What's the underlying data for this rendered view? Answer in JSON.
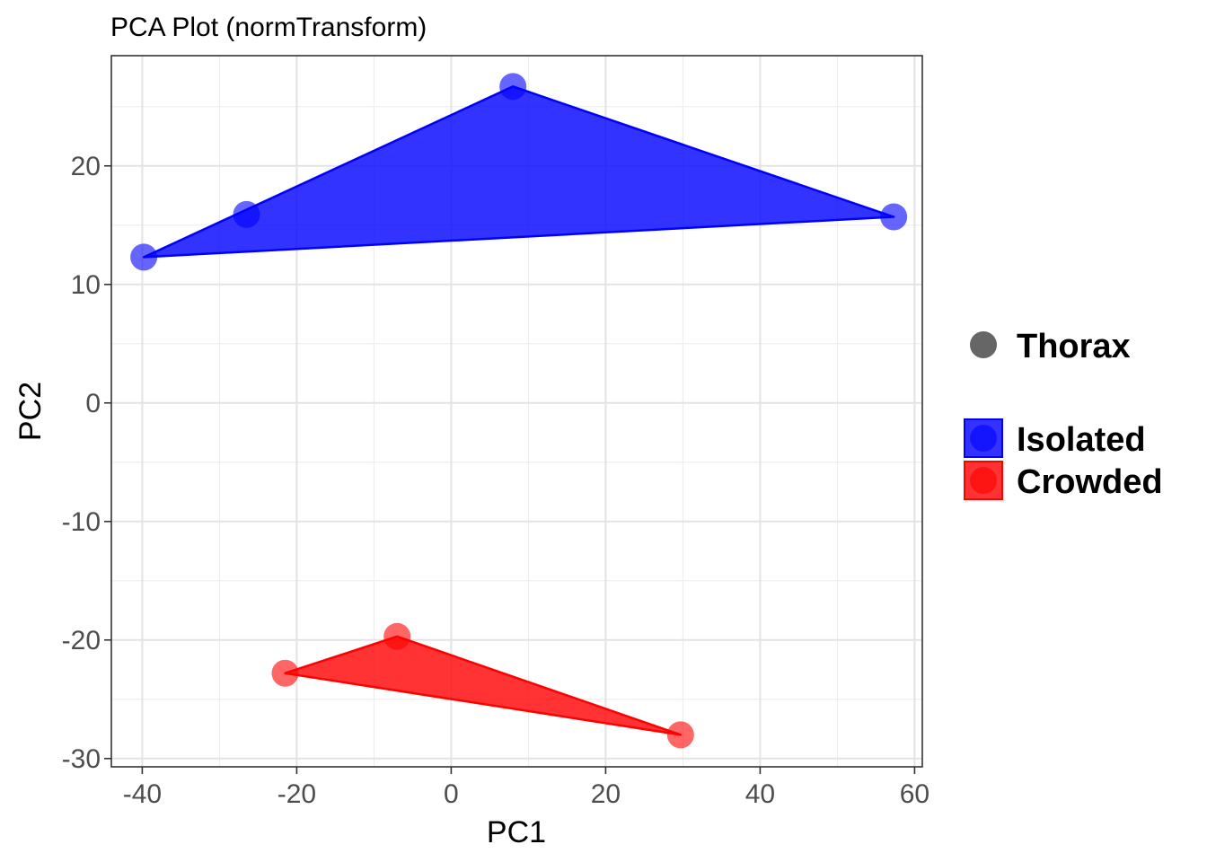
{
  "chart_data": {
    "type": "scatter",
    "title": "PCA Plot (normTransform)",
    "xlabel": "PC1",
    "ylabel": "PC2",
    "xlim": [
      -44,
      61
    ],
    "ylim": [
      -30.7,
      29.3
    ],
    "x_ticks": [
      -40,
      -20,
      0,
      20,
      40,
      60
    ],
    "y_ticks": [
      -30,
      -20,
      -10,
      0,
      10,
      20
    ],
    "x_tick_labels": [
      "-40",
      "-20",
      "0",
      "20",
      "40",
      "60"
    ],
    "y_tick_labels": [
      "-30",
      "-20",
      "-10",
      "0",
      "10",
      "20"
    ],
    "grid": true,
    "legend_position": "right",
    "shape_legend": {
      "label": "Thorax",
      "color": "#666666"
    },
    "series": [
      {
        "name": "Isolated",
        "color": "#0000ff",
        "points": [
          {
            "x": -39.8,
            "y": 12.3
          },
          {
            "x": -26.5,
            "y": 15.9
          },
          {
            "x": 8.0,
            "y": 26.7
          },
          {
            "x": 57.3,
            "y": 15.7
          }
        ],
        "hull": [
          0,
          2,
          3
        ]
      },
      {
        "name": "Crowded",
        "color": "#ff0000",
        "points": [
          {
            "x": -21.5,
            "y": -22.8
          },
          {
            "x": -7.0,
            "y": -19.7
          },
          {
            "x": 29.7,
            "y": -28.0
          }
        ],
        "hull": [
          0,
          1,
          2
        ]
      }
    ]
  }
}
